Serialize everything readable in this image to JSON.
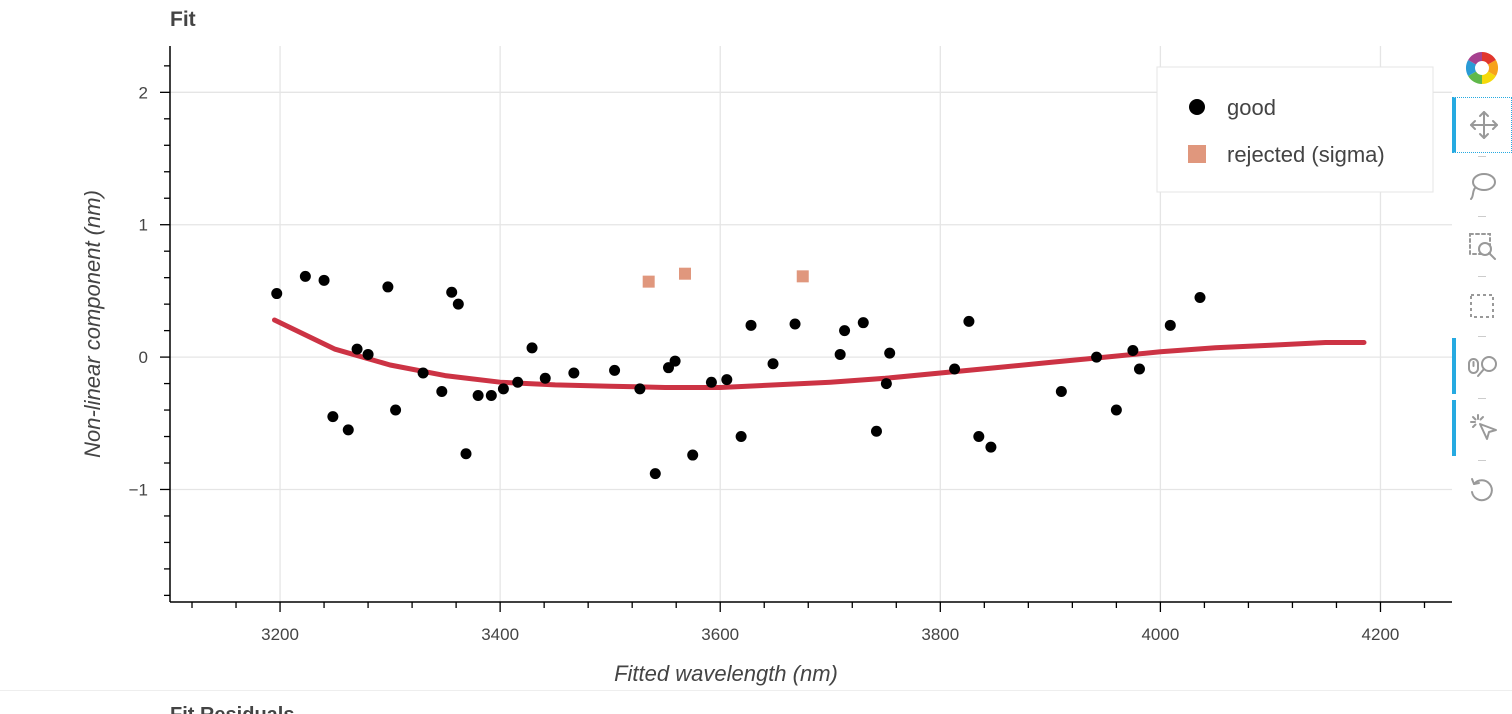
{
  "plot_title": "Fit",
  "next_title": "Fit Residuals",
  "toolbar": {
    "tools": [
      {
        "name": "bokeh-logo",
        "icon": "bokeh-logo-icon"
      },
      {
        "name": "pan",
        "icon": "move-icon"
      },
      {
        "name": "lasso-select",
        "icon": "lasso-icon"
      },
      {
        "name": "box-zoom",
        "icon": "box-zoom-icon"
      },
      {
        "name": "box-select",
        "icon": "box-select-icon"
      },
      {
        "name": "wheel-zoom",
        "icon": "wheel-zoom-icon"
      },
      {
        "name": "tap",
        "icon": "tap-icon"
      },
      {
        "name": "reset",
        "icon": "reset-icon"
      }
    ]
  },
  "chart_data": {
    "type": "scatter",
    "xlabel": "Fitted wavelength (nm)",
    "ylabel": "Non-linear component (nm)",
    "xlim": [
      3100,
      4265
    ],
    "ylim": [
      -1.85,
      2.35
    ],
    "x_ticks": [
      3200,
      3400,
      3600,
      3800,
      4000,
      4200
    ],
    "x_tick_labels": [
      "3200",
      "3400",
      "3600",
      "3800",
      "4000",
      "4200"
    ],
    "y_ticks": [
      2,
      1,
      0,
      -1
    ],
    "y_tick_labels": [
      "2",
      "1",
      "0",
      "−1"
    ],
    "grid": true,
    "legend_position": "top-right",
    "colors": {
      "good": "#000000",
      "rejected": "#e0977d",
      "fit": "#cc3344"
    },
    "series": [
      {
        "name": "good",
        "marker": "circle",
        "x": [
          3197,
          3223,
          3240,
          3248,
          3262,
          3270,
          3280,
          3298,
          3305,
          3330,
          3347,
          3356,
          3362,
          3369,
          3380,
          3392,
          3403,
          3416,
          3429,
          3441,
          3467,
          3504,
          3527,
          3541,
          3553,
          3559,
          3575,
          3592,
          3606,
          3619,
          3628,
          3648,
          3668,
          3709,
          3713,
          3730,
          3742,
          3751,
          3754,
          3813,
          3826,
          3835,
          3846,
          3910,
          3942,
          3960,
          3975,
          3981,
          4009,
          4036
        ],
        "y": [
          0.48,
          0.61,
          0.58,
          -0.45,
          -0.55,
          0.06,
          0.02,
          0.53,
          -0.4,
          -0.12,
          -0.26,
          0.49,
          0.4,
          -0.73,
          -0.29,
          -0.29,
          -0.24,
          -0.19,
          0.07,
          -0.16,
          -0.12,
          -0.1,
          -0.24,
          -0.88,
          -0.08,
          -0.03,
          -0.74,
          -0.19,
          -0.17,
          -0.6,
          0.24,
          -0.05,
          0.25,
          0.02,
          0.2,
          0.26,
          -0.56,
          -0.2,
          0.03,
          -0.09,
          0.27,
          -0.6,
          -0.68,
          -0.26,
          0.0,
          -0.4,
          0.05,
          -0.09,
          0.24,
          0.45
        ]
      },
      {
        "name": "rejected (sigma)",
        "marker": "square",
        "x": [
          3535,
          3568,
          3675
        ],
        "y": [
          0.57,
          0.63,
          0.61
        ]
      },
      {
        "name": "fit",
        "type": "line",
        "x": [
          3195,
          3250,
          3300,
          3350,
          3400,
          3450,
          3500,
          3550,
          3600,
          3650,
          3700,
          3750,
          3800,
          3850,
          3900,
          3950,
          4000,
          4050,
          4100,
          4150,
          4185
        ],
        "y": [
          0.28,
          0.06,
          -0.06,
          -0.14,
          -0.19,
          -0.21,
          -0.22,
          -0.23,
          -0.23,
          -0.21,
          -0.19,
          -0.16,
          -0.12,
          -0.08,
          -0.04,
          0.0,
          0.04,
          0.07,
          0.09,
          0.11,
          0.11
        ]
      }
    ]
  }
}
